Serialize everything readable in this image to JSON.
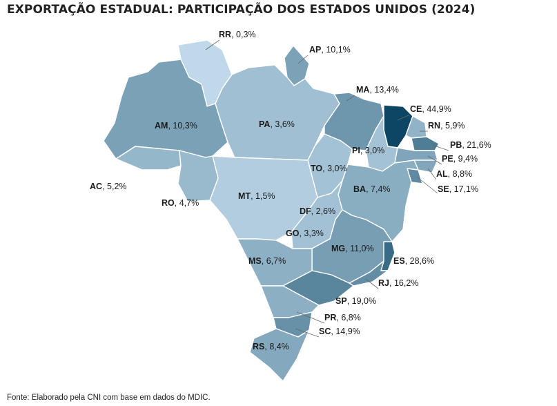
{
  "title": "EXPORTAÇÃO ESTADUAL: PARTICIPAÇÃO DOS ESTADOS UNIDOS (2024)",
  "source": "Fonte: Elaborado pela CNI com base em dados do MDIC.",
  "color_scale": {
    "lightest": "#c9e1f1",
    "darkest": "#0d4664"
  },
  "states": [
    {
      "code": "RR",
      "value": "0,3%",
      "share": 0.3
    },
    {
      "code": "AP",
      "value": "10,1%",
      "share": 10.1
    },
    {
      "code": "AM",
      "value": "10,3%",
      "share": 10.3
    },
    {
      "code": "PA",
      "value": "3,6%",
      "share": 3.6
    },
    {
      "code": "MA",
      "value": "13,4%",
      "share": 13.4
    },
    {
      "code": "CE",
      "value": "44,9%",
      "share": 44.9
    },
    {
      "code": "RN",
      "value": "5,9%",
      "share": 5.9
    },
    {
      "code": "PB",
      "value": "21,6%",
      "share": 21.6
    },
    {
      "code": "PI",
      "value": "3,0%",
      "share": 3.0
    },
    {
      "code": "PE",
      "value": "9,4%",
      "share": 9.4
    },
    {
      "code": "AL",
      "value": "8,8%",
      "share": 8.8
    },
    {
      "code": "TO",
      "value": "3,0%",
      "share": 3.0
    },
    {
      "code": "AC",
      "value": "5,2%",
      "share": 5.2
    },
    {
      "code": "SE",
      "value": "17,1%",
      "share": 17.1
    },
    {
      "code": "BA",
      "value": "7,4%",
      "share": 7.4
    },
    {
      "code": "MT",
      "value": "1,5%",
      "share": 1.5
    },
    {
      "code": "RO",
      "value": "4,7%",
      "share": 4.7
    },
    {
      "code": "DF",
      "value": "2,6%",
      "share": 2.6
    },
    {
      "code": "GO",
      "value": "3,3%",
      "share": 3.3
    },
    {
      "code": "MG",
      "value": "11,0%",
      "share": 11.0
    },
    {
      "code": "ES",
      "value": "28,6%",
      "share": 28.6
    },
    {
      "code": "MS",
      "value": "6,7%",
      "share": 6.7
    },
    {
      "code": "RJ",
      "value": "16,2%",
      "share": 16.2
    },
    {
      "code": "SP",
      "value": "19,0%",
      "share": 19.0
    },
    {
      "code": "PR",
      "value": "6,8%",
      "share": 6.8
    },
    {
      "code": "SC",
      "value": "14,9%",
      "share": 14.9
    },
    {
      "code": "RS",
      "value": "8,4%",
      "share": 8.4
    }
  ]
}
